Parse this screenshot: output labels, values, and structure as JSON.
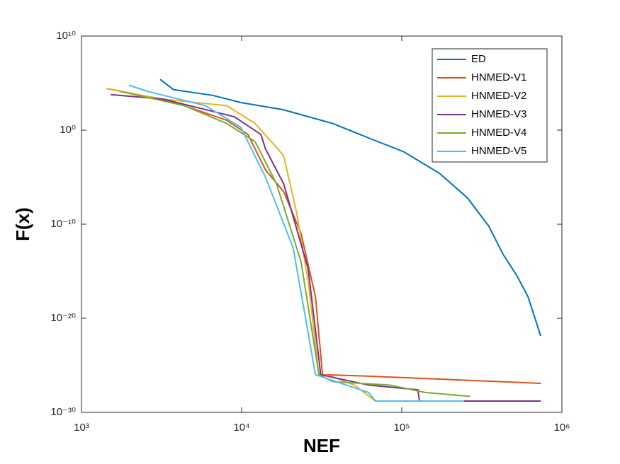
{
  "chart_data": {
    "type": "line",
    "x_label": "NEF",
    "y_label": "F(x)",
    "xscale": "log",
    "yscale": "log",
    "xlim": [
      1000,
      1000000
    ],
    "ylim": [
      1e-30,
      10000000000.0
    ],
    "xticks": [
      {
        "value": 1000,
        "label": "10³"
      },
      {
        "value": 10000,
        "label": "10⁴"
      },
      {
        "value": 100000,
        "label": "10⁵"
      },
      {
        "value": 1000000,
        "label": "10⁶"
      }
    ],
    "yticks": [
      {
        "value": 1e-30,
        "label": "10⁻³⁰"
      },
      {
        "value": 1e-20,
        "label": "10⁻²⁰"
      },
      {
        "value": 1e-10,
        "label": "10⁻¹⁰"
      },
      {
        "value": 1,
        "label": "10⁰"
      },
      {
        "value": 10000000000.0,
        "label": "10¹⁰"
      }
    ],
    "legend": "northeast",
    "series": [
      {
        "name": "ED",
        "color": "#0072BD",
        "x": [
          3100,
          3760,
          6600,
          9900,
          18200,
          37200,
          62000,
          103000,
          172000,
          258000,
          350000,
          430000,
          526000,
          614000,
          680000,
          737000
        ],
        "values": [
          250000.0,
          20000.0,
          5000.0,
          850,
          150,
          5,
          0.15,
          0.005,
          2.6e-05,
          6e-08,
          6e-11,
          6e-14,
          3e-16,
          2e-18,
          1e-20,
          1.3e-22
        ]
      },
      {
        "name": "HNMED-V1",
        "color": "#D95319",
        "x": [
          1460,
          2380,
          4390,
          8080,
          10950,
          14100,
          18300,
          23500,
          28900,
          32000,
          50500,
          140000,
          551000,
          738000
        ],
        "values": [
          25000.0,
          5000.0,
          400,
          11,
          0.35,
          6e-05,
          3e-07,
          1e-11,
          2e-18,
          1e-26,
          8e-27,
          4e-27,
          1.5e-27,
          1.2e-27
        ]
      },
      {
        "name": "HNMED-V2",
        "color": "#EDB120",
        "x": [
          1430,
          3230,
          8080,
          12150,
          18300,
          22000,
          26100,
          30400,
          35300,
          50500,
          68500,
          126000
        ],
        "values": [
          25000.0,
          2000.0,
          400,
          5,
          0.002,
          2e-09,
          6e-17,
          1e-26,
          8e-27,
          8e-28,
          1.6e-29,
          1.6e-29
        ]
      },
      {
        "name": "HNMED-V3",
        "color": "#7E2F8E",
        "x": [
          1520,
          3230,
          9000,
          13200,
          14100,
          18300,
          26000,
          31200,
          62000,
          126000,
          129000,
          738000
        ],
        "values": [
          6000.0,
          2000.0,
          27,
          0.35,
          0.01,
          2e-06,
          2e-15,
          1e-26,
          8e-28,
          2.5e-28,
          1.6e-29,
          1.6e-29
        ]
      },
      {
        "name": "HNMED-V4",
        "color": "#77AC30",
        "x": [
          1750,
          4390,
          8080,
          12150,
          16500,
          23500,
          30400,
          37200,
          84000,
          140000,
          267000
        ],
        "values": [
          13000.0,
          400,
          5,
          0.06,
          2e-06,
          1e-14,
          1e-26,
          1.8e-27,
          8e-28,
          1.3e-28,
          5e-29
        ]
      },
      {
        "name": "HNMED-V5",
        "color": "#4DBEEE",
        "x": [
          1980,
          2600,
          5950,
          9890,
          14100,
          21000,
          28900,
          62000,
          68500,
          245000
        ],
        "values": [
          60000.0,
          13000.0,
          400,
          2,
          1e-05,
          3e-13,
          1e-26,
          1.3e-28,
          1.6e-29,
          1.6e-29
        ]
      }
    ]
  }
}
